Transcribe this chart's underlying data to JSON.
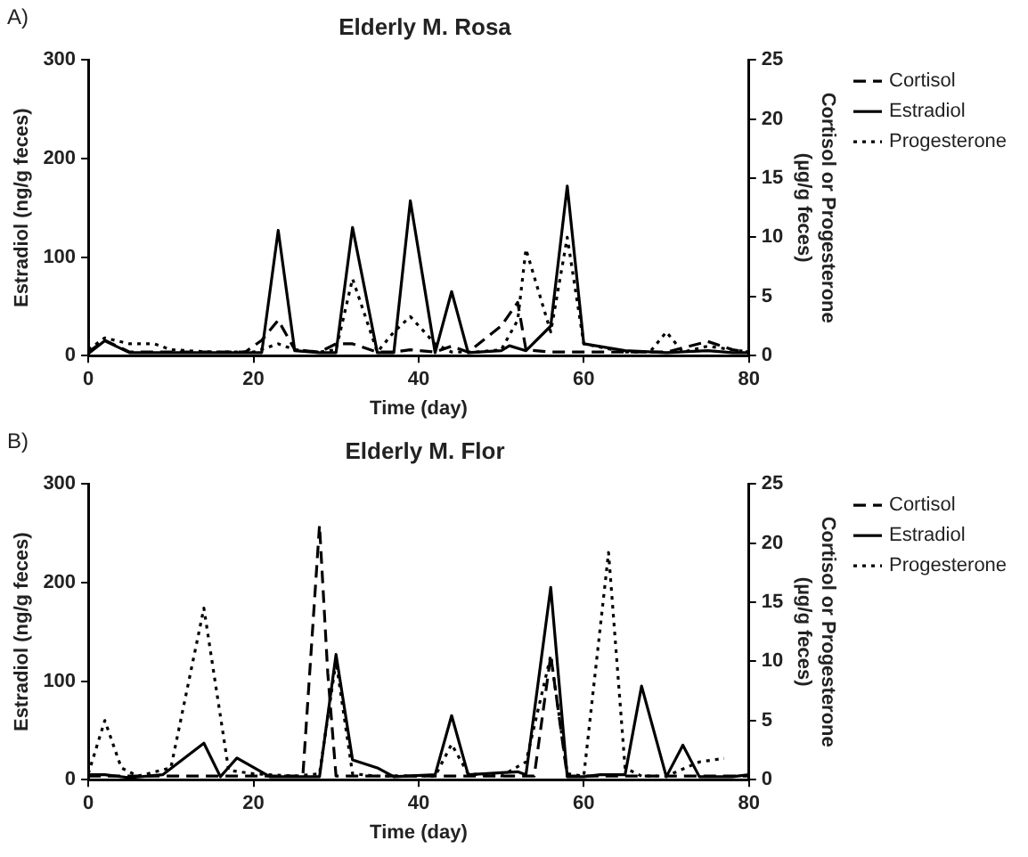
{
  "chart_data": [
    {
      "type": "line",
      "title": "Elderly M. Rosa",
      "xlabel": "Time (day)",
      "ylabel": "Estradiol (ng/g feces)",
      "y2label": "Cortisol or Progesterone (µg/g feces)",
      "annotations": [
        "A)"
      ],
      "xlim": [
        0,
        80
      ],
      "xticks": [
        0,
        20,
        40,
        60,
        80
      ],
      "ylim": [
        0,
        300
      ],
      "yticks": [
        0,
        100,
        200,
        300
      ],
      "y2lim": [
        0,
        25
      ],
      "y2ticks": [
        0,
        5,
        10,
        15,
        20,
        25
      ],
      "grid": false,
      "legend": "right",
      "marker": "none",
      "series": [
        {
          "name": "Cortisol",
          "color": "#000000",
          "axis": "y2",
          "line_style": "dashed",
          "x": [
            0,
            2,
            5,
            10,
            15,
            19,
            21,
            23,
            25,
            28,
            30,
            32,
            35,
            37,
            39,
            42,
            44,
            46,
            50,
            52,
            53,
            56,
            58,
            60,
            65,
            70,
            75,
            78,
            80
          ],
          "values": [
            0.3,
            1.3,
            0.3,
            0.3,
            0.3,
            0.3,
            1.3,
            3,
            0.5,
            0.3,
            1,
            1,
            0.3,
            0.3,
            0.5,
            0.3,
            0.8,
            0.3,
            2.5,
            4.5,
            0.5,
            0.3,
            0.3,
            0.3,
            0.3,
            0.3,
            1.2,
            0.5,
            0.3
          ]
        },
        {
          "name": "Estradiol",
          "color": "#000000",
          "axis": "y",
          "line_style": "solid",
          "x": [
            0,
            2,
            5,
            10,
            15,
            21,
            23,
            25,
            28,
            30,
            32,
            35,
            37,
            39,
            42,
            44,
            46,
            50,
            51,
            53,
            56,
            58,
            60,
            65,
            70,
            75,
            78,
            80
          ],
          "values": [
            2,
            15,
            3,
            3,
            3,
            3,
            127,
            5,
            3,
            3,
            130,
            3,
            3,
            157,
            3,
            65,
            3,
            5,
            10,
            5,
            30,
            172,
            12,
            5,
            3,
            5,
            3,
            3
          ]
        },
        {
          "name": "Progesterone",
          "color": "#000000",
          "axis": "y2",
          "line_style": "dotted",
          "x": [
            0,
            2,
            5,
            8,
            10,
            15,
            20,
            23,
            25,
            28,
            30,
            32,
            35,
            37,
            39,
            42,
            44,
            47,
            50,
            52,
            53,
            56,
            58,
            60,
            65,
            68,
            70,
            72,
            75,
            80
          ],
          "values": [
            0.5,
            1.5,
            1,
            1,
            0.5,
            0.3,
            0.3,
            1,
            0.5,
            0.3,
            0.5,
            6.5,
            0.3,
            2,
            3.3,
            1,
            0.3,
            0.3,
            0.5,
            3,
            9,
            2,
            10,
            1,
            0.3,
            0.3,
            2,
            0.3,
            0.8,
            0.3
          ]
        }
      ]
    },
    {
      "type": "line",
      "title": "Elderly M. Flor",
      "xlabel": "Time (day)",
      "ylabel": "Estradiol (ng/g feces)",
      "y2label": "Cortisol or Progesterone (µg/g feces)",
      "annotations": [
        "B)"
      ],
      "xlim": [
        0,
        80
      ],
      "xticks": [
        0,
        20,
        40,
        60,
        80
      ],
      "ylim": [
        0,
        300
      ],
      "yticks": [
        0,
        100,
        200,
        300
      ],
      "y2lim": [
        0,
        25
      ],
      "y2ticks": [
        0,
        5,
        10,
        15,
        20,
        25
      ],
      "grid": false,
      "legend": "right",
      "marker": "none",
      "series": [
        {
          "name": "Cortisol",
          "color": "#000000",
          "axis": "y2",
          "line_style": "dashed",
          "x": [
            0,
            5,
            10,
            20,
            25,
            26,
            28,
            29,
            30,
            35,
            40,
            44,
            50,
            54,
            56,
            58,
            62,
            65,
            70,
            80
          ],
          "values": [
            0.3,
            0.3,
            0.3,
            0.3,
            0.3,
            0.5,
            21.5,
            9,
            0.3,
            0.3,
            0.3,
            0.3,
            0.3,
            0.3,
            10.5,
            0.3,
            0.3,
            0.3,
            0.3,
            0.3
          ]
        },
        {
          "name": "Estradiol",
          "color": "#000000",
          "axis": "y",
          "line_style": "solid",
          "x": [
            0,
            2,
            5,
            9,
            14,
            16,
            18,
            22,
            25,
            28,
            30,
            32,
            35,
            37,
            42,
            44,
            46,
            50,
            52,
            53,
            56,
            58,
            60,
            62,
            65,
            67,
            70,
            72,
            74,
            78,
            80
          ],
          "values": [
            5,
            5,
            2,
            5,
            37,
            3,
            22,
            3,
            3,
            3,
            127,
            20,
            12,
            3,
            5,
            65,
            5,
            7,
            8,
            5,
            195,
            3,
            3,
            5,
            5,
            95,
            3,
            35,
            3,
            3,
            5
          ]
        },
        {
          "name": "Progesterone",
          "color": "#000000",
          "axis": "y2",
          "line_style": "dotted",
          "x": [
            0,
            2,
            4,
            6,
            10,
            14,
            17,
            20,
            25,
            28,
            30,
            32,
            35,
            42,
            44,
            46,
            50,
            53,
            56,
            58,
            60,
            63,
            65,
            67,
            70,
            74,
            77
          ],
          "values": [
            0.5,
            5,
            1,
            0.3,
            1,
            14.5,
            0.8,
            0.5,
            0.3,
            0.5,
            10,
            0.5,
            0.3,
            0.3,
            3,
            0.5,
            0.3,
            1.5,
            10.5,
            0.5,
            0.3,
            19.2,
            1,
            0.3,
            0.3,
            1.5,
            1.8
          ]
        }
      ]
    }
  ]
}
